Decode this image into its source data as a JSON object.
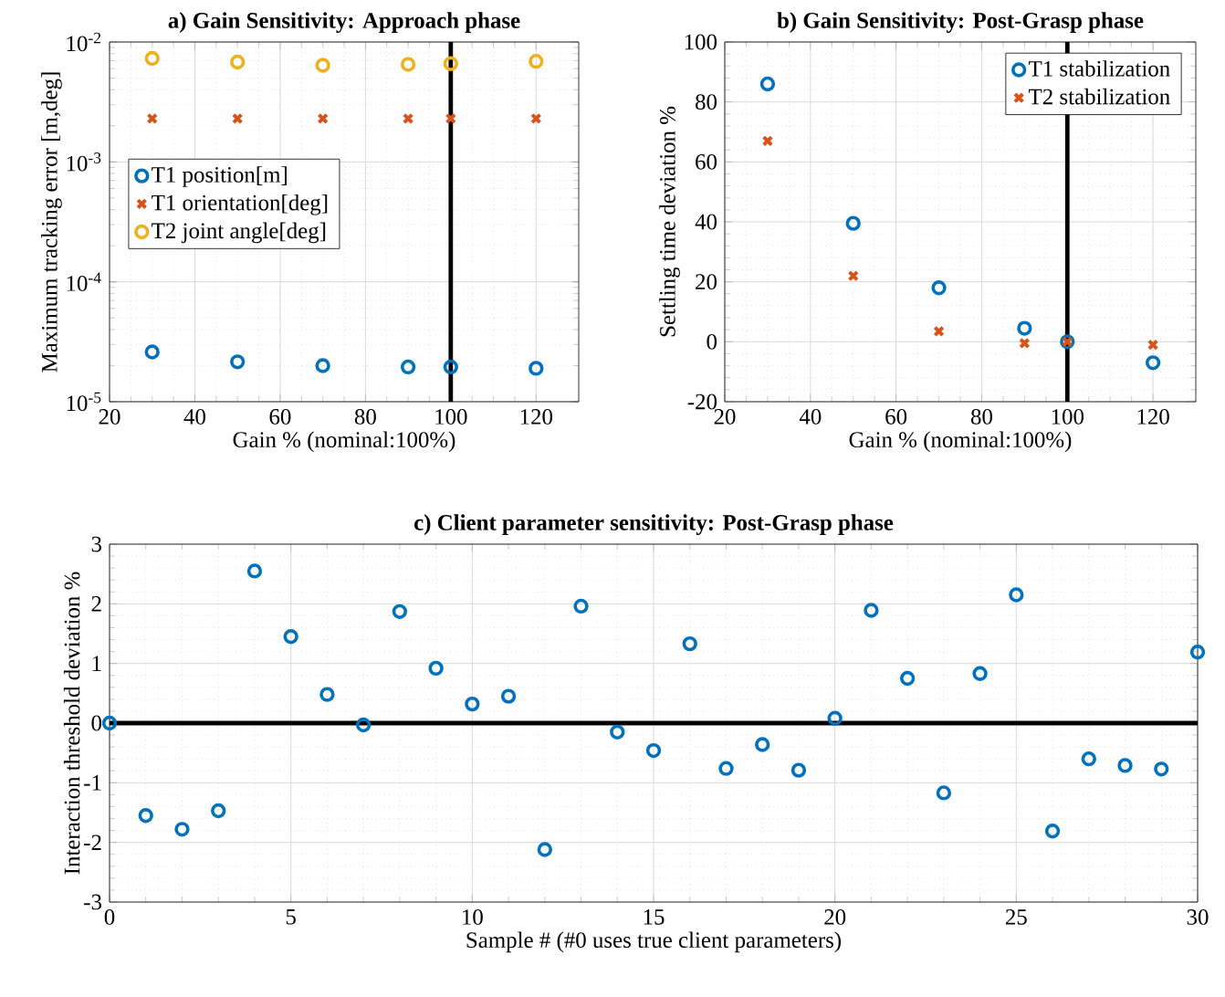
{
  "chart_data": [
    {
      "type": "scatter",
      "title": "a) Gain Sensitivity: Approach phase",
      "xlabel": "Gain % (nominal:100%)",
      "ylabel": "Maximum tracking error [m,deg]",
      "x": [
        30,
        50,
        70,
        90,
        100,
        120
      ],
      "xlim": [
        20,
        130
      ],
      "xticks": [
        20,
        40,
        60,
        80,
        100,
        120
      ],
      "log": "y",
      "ylim": [
        1e-05,
        0.01
      ],
      "yticks": [
        {
          "value": 1e-05,
          "label": "10$^{-5}$"
        },
        {
          "value": 0.0001,
          "label": "10$^{-4}$"
        },
        {
          "value": 0.001,
          "label": "10$^{-3}$"
        },
        {
          "value": 0.01,
          "label": "10$^{-2}$"
        }
      ],
      "grid": true,
      "legend": "left",
      "ref_lines": [
        {
          "axis": "x",
          "value": 100,
          "color": "#000000"
        }
      ],
      "series": [
        {
          "name": "T1 position[m]",
          "color": "#0072bd",
          "marker": "circle",
          "values": [
            2.6e-05,
            2.15e-05,
            2e-05,
            1.95e-05,
            1.95e-05,
            1.9e-05
          ]
        },
        {
          "name": "T1 orientation[deg]",
          "color": "#d95319",
          "marker": "cross",
          "values": [
            0.0023,
            0.0023,
            0.0023,
            0.0023,
            0.0023,
            0.0023
          ]
        },
        {
          "name": "T2 joint angle[deg]",
          "color": "#edb120",
          "marker": "circle",
          "values": [
            0.0073,
            0.0068,
            0.0064,
            0.0065,
            0.0066,
            0.0069
          ]
        }
      ]
    },
    {
      "type": "scatter",
      "title": "b) Gain Sensitivity: Post-Grasp phase",
      "xlabel": "Gain % (nominal:100%)",
      "ylabel": "Settling time deviation %",
      "x": [
        30,
        50,
        70,
        90,
        100,
        120
      ],
      "xlim": [
        20,
        130
      ],
      "xticks": [
        20,
        40,
        60,
        80,
        100,
        120
      ],
      "ylim": [
        -20,
        100
      ],
      "yticks": [
        -20,
        0,
        20,
        40,
        60,
        80,
        100
      ],
      "grid": true,
      "legend": "top right",
      "ref_lines": [
        {
          "axis": "x",
          "value": 100,
          "color": "#000000"
        }
      ],
      "series": [
        {
          "name": "T1 stabilization",
          "color": "#0072bd",
          "marker": "circle",
          "values": [
            86,
            39.5,
            18,
            4.5,
            0,
            -7
          ]
        },
        {
          "name": "T2 stabilization",
          "color": "#d95319",
          "marker": "cross",
          "values": [
            67,
            22,
            3.5,
            -0.5,
            0,
            -1
          ]
        }
      ]
    },
    {
      "type": "scatter",
      "title": "c) Client parameter sensitivity: Post-Grasp phase",
      "xlabel": "Sample # (#0 uses true client parameters)",
      "ylabel": "Interaction threshold deviation %",
      "x": [
        0,
        1,
        2,
        3,
        4,
        5,
        6,
        7,
        8,
        9,
        10,
        11,
        12,
        13,
        14,
        15,
        16,
        17,
        18,
        19,
        20,
        21,
        22,
        23,
        24,
        25,
        26,
        27,
        28,
        29,
        30
      ],
      "xlim": [
        0,
        30
      ],
      "xticks": [
        0,
        5,
        10,
        15,
        20,
        25,
        30
      ],
      "ylim": [
        -3,
        3
      ],
      "yticks": [
        -3,
        -2,
        -1,
        0,
        1,
        2,
        3
      ],
      "grid": true,
      "ref_lines": [
        {
          "axis": "y",
          "value": 0,
          "color": "#000000"
        }
      ],
      "series": [
        {
          "color": "#0072bd",
          "marker": "circle",
          "values": [
            0,
            -1.55,
            -1.78,
            -1.47,
            2.55,
            1.45,
            0.48,
            -0.03,
            1.87,
            0.92,
            0.32,
            0.45,
            -2.12,
            1.96,
            -0.15,
            -0.46,
            1.33,
            -0.76,
            -0.36,
            -0.79,
            0.08,
            1.89,
            0.75,
            -1.17,
            0.83,
            2.15,
            -1.81,
            -0.6,
            -0.71,
            -0.77,
            1.19
          ]
        }
      ]
    }
  ]
}
